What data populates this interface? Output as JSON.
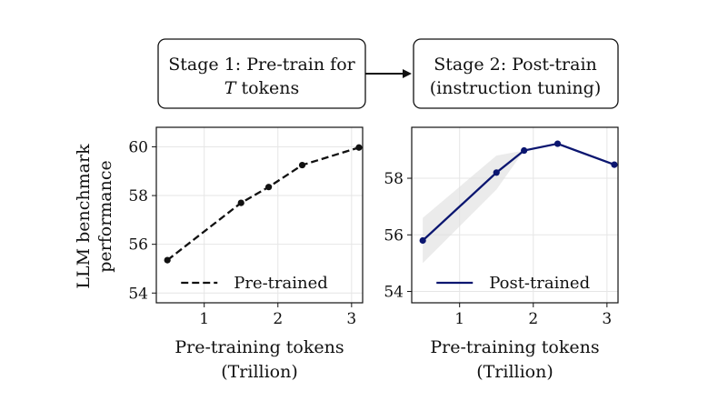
{
  "stages": {
    "stage1": {
      "line1": "Stage 1: Pre-train for",
      "line2_var": "T",
      "line2_rest": " tokens"
    },
    "stage2": {
      "line1": "Stage 2: Post-train",
      "line2": "(instruction tuning)"
    }
  },
  "shared_ylabel": [
    "LLM benchmark",
    "performance"
  ],
  "chart_data": [
    {
      "type": "line",
      "title": "",
      "xlabel": [
        "Pre-training tokens",
        "(Trillion)"
      ],
      "ylabel": "LLM benchmark performance",
      "xlim": [
        0.35,
        3.15
      ],
      "ylim": [
        53.6,
        60.8
      ],
      "xticks": [
        1,
        2,
        3
      ],
      "yticks": [
        54,
        56,
        58,
        60
      ],
      "grid": true,
      "legend_position": "bottom-right",
      "series": [
        {
          "name": "Pre-trained",
          "style": "dashed",
          "color": "#111111",
          "x": [
            0.5,
            1.5,
            1.875,
            2.33,
            3.1
          ],
          "y": [
            55.35,
            57.7,
            58.35,
            59.25,
            59.97
          ]
        }
      ]
    },
    {
      "type": "line",
      "title": "",
      "xlabel": [
        "Pre-training tokens",
        "(Trillion)"
      ],
      "ylabel": "",
      "xlim": [
        0.35,
        3.15
      ],
      "ylim": [
        53.6,
        59.8
      ],
      "xticks": [
        1,
        2,
        3
      ],
      "yticks": [
        54,
        56,
        58
      ],
      "grid": true,
      "legend_position": "bottom-right",
      "series": [
        {
          "name": "Post-trained",
          "style": "solid",
          "color": "#0b1670",
          "x": [
            0.5,
            1.5,
            1.875,
            2.33,
            3.1
          ],
          "y": [
            55.8,
            58.2,
            58.98,
            59.22,
            58.48
          ],
          "band_lower": [
            55.0,
            57.6,
            58.98,
            59.22,
            58.48
          ],
          "band_upper": [
            56.6,
            58.8,
            58.98,
            59.22,
            58.48
          ]
        }
      ]
    }
  ]
}
